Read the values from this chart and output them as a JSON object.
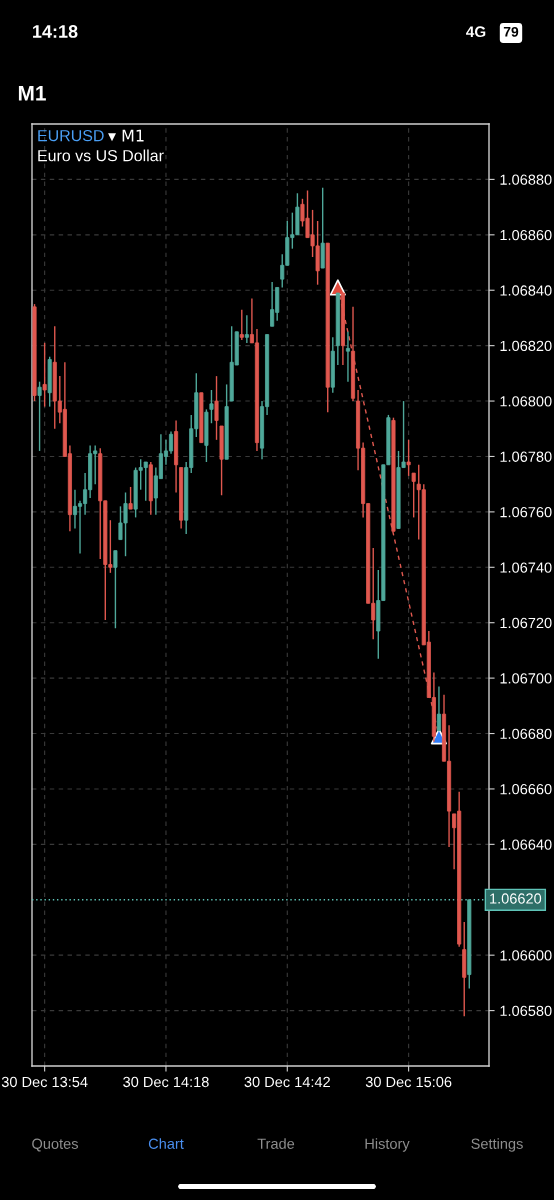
{
  "chart_data": {
    "type": "candlestick",
    "title": "EURUSD",
    "subtitle": "Euro vs US Dollar",
    "annotations": [
      "14:18",
      "4G",
      "79",
      "M1",
      "▾ M1",
      "Quotes",
      "Chart",
      "Trade",
      "History",
      "Settings"
    ],
    "categories": [
      null,
      null,
      "30 Dec 13:54",
      null,
      null,
      null,
      null,
      null,
      null,
      null,
      null,
      null,
      null,
      null,
      null,
      null,
      null,
      null,
      null,
      null,
      null,
      null,
      null,
      null,
      null,
      null,
      "30 Dec 14:18",
      null,
      null,
      null,
      null,
      null,
      null,
      null,
      null,
      null,
      null,
      null,
      null,
      null,
      null,
      null,
      null,
      null,
      null,
      null,
      null,
      null,
      null,
      null,
      "30 Dec 14:42",
      null,
      null,
      null,
      null,
      null,
      null,
      null,
      null,
      null,
      null,
      null,
      null,
      null,
      null,
      null,
      null,
      null,
      null,
      null,
      null,
      null,
      null,
      null,
      "30 Dec 15:06",
      null,
      null,
      null,
      null,
      null,
      null,
      null,
      null,
      null,
      null,
      null,
      null
    ],
    "ohlc": [
      [
        1.06834,
        1.06835,
        1.068,
        1.06802
      ],
      [
        1.06802,
        1.06807,
        1.06782,
        1.06805
      ],
      [
        1.06806,
        1.06821,
        1.06798,
        1.06804
      ],
      [
        1.06803,
        1.06816,
        1.06798,
        1.06815
      ],
      [
        1.06814,
        1.06827,
        1.0679,
        1.068
      ],
      [
        1.068,
        1.06809,
        1.06792,
        1.06796
      ],
      [
        1.06797,
        1.06814,
        1.0678,
        1.0678
      ],
      [
        1.06781,
        1.06784,
        1.06753,
        1.06759
      ],
      [
        1.06759,
        1.06768,
        1.06754,
        1.06762
      ],
      [
        1.06762,
        1.06764,
        1.06745,
        1.06763
      ],
      [
        1.06763,
        1.06774,
        1.06759,
        1.06768
      ],
      [
        1.06768,
        1.06784,
        1.06765,
        1.06781
      ],
      [
        1.06781,
        1.06784,
        1.0677,
        1.06782
      ],
      [
        1.06781,
        1.06783,
        1.06743,
        1.06764
      ],
      [
        1.06764,
        1.06764,
        1.06721,
        1.06741
      ],
      [
        1.06741,
        1.06757,
        1.06738,
        1.0674
      ],
      [
        1.0674,
        1.06746,
        1.06718,
        1.06746
      ],
      [
        1.0675,
        1.06762,
        1.0675,
        1.06756
      ],
      [
        1.06756,
        1.06767,
        1.06744,
        1.06763
      ],
      [
        1.06763,
        1.06769,
        1.06761,
        1.06761
      ],
      [
        1.06761,
        1.06776,
        1.06758,
        1.06775
      ],
      [
        1.06775,
        1.06779,
        1.06768,
        1.06776
      ],
      [
        1.06776,
        1.06778,
        1.06764,
        1.06778
      ],
      [
        1.06777,
        1.06778,
        1.06759,
        1.06764
      ],
      [
        1.06765,
        1.06776,
        1.06759,
        1.06773
      ],
      [
        1.06772,
        1.06788,
        1.06772,
        1.06781
      ],
      [
        1.0678,
        1.06786,
        1.06777,
        1.06782
      ],
      [
        1.06782,
        1.06789,
        1.06781,
        1.06788
      ],
      [
        1.06789,
        1.06793,
        1.06767,
        1.06777
      ],
      [
        1.06776,
        1.06776,
        1.06754,
        1.06757
      ],
      [
        1.06757,
        1.06778,
        1.06752,
        1.06776
      ],
      [
        1.06776,
        1.06795,
        1.06774,
        1.0679
      ],
      [
        1.0679,
        1.0681,
        1.06787,
        1.06803
      ],
      [
        1.06803,
        1.06803,
        1.06785,
        1.06785
      ],
      [
        1.06784,
        1.06797,
        1.06778,
        1.06796
      ],
      [
        1.06797,
        1.06804,
        1.06792,
        1.06799
      ],
      [
        1.068,
        1.06809,
        1.06786,
        1.06793
      ],
      [
        1.06791,
        1.06791,
        1.06766,
        1.06779
      ],
      [
        1.06779,
        1.06806,
        1.06779,
        1.06798
      ],
      [
        1.068,
        1.06827,
        1.068,
        1.06814
      ],
      [
        1.06813,
        1.06825,
        1.06813,
        1.06825
      ],
      [
        1.06824,
        1.06833,
        1.06822,
        1.06823
      ],
      [
        1.06823,
        1.06831,
        1.06821,
        1.06824
      ],
      [
        1.06824,
        1.06837,
        1.06821,
        1.06821
      ],
      [
        1.06821,
        1.06826,
        1.06782,
        1.06785
      ],
      [
        1.06783,
        1.068,
        1.06779,
        1.06798
      ],
      [
        1.06798,
        1.06824,
        1.06795,
        1.06824
      ],
      [
        1.06827,
        1.06843,
        1.06827,
        1.06833
      ],
      [
        1.06832,
        1.06841,
        1.06829,
        1.06841
      ],
      [
        1.06844,
        1.06853,
        1.06841,
        1.06849
      ],
      [
        1.06849,
        1.06865,
        1.06849,
        1.06859
      ],
      [
        1.06859,
        1.06868,
        1.06855,
        1.0686
      ],
      [
        1.0686,
        1.06875,
        1.0686,
        1.0687
      ],
      [
        1.06871,
        1.06873,
        1.06863,
        1.06865
      ],
      [
        1.06866,
        1.06876,
        1.06859,
        1.06859
      ],
      [
        1.0686,
        1.06869,
        1.06852,
        1.06856
      ],
      [
        1.06856,
        1.06865,
        1.06842,
        1.06847
      ],
      [
        1.06848,
        1.06877,
        1.06848,
        1.06857
      ],
      [
        1.06857,
        1.06857,
        1.06796,
        1.06805
      ],
      [
        1.06805,
        1.06823,
        1.06803,
        1.06818
      ],
      [
        1.0682,
        1.06839,
        1.06813,
        1.06839
      ],
      [
        1.06839,
        1.06839,
        1.06813,
        1.0682
      ],
      [
        1.06818,
        1.06825,
        1.06807,
        1.06819
      ],
      [
        1.06818,
        1.06834,
        1.068,
        1.06801
      ],
      [
        1.068,
        1.06804,
        1.06775,
        1.06783
      ],
      [
        1.06783,
        1.06785,
        1.06758,
        1.06763
      ],
      [
        1.06763,
        1.06763,
        1.06727,
        1.06727
      ],
      [
        1.06727,
        1.06747,
        1.06714,
        1.06721
      ],
      [
        1.06717,
        1.06739,
        1.06707,
        1.06728
      ],
      [
        1.06728,
        1.06777,
        1.06728,
        1.06777
      ],
      [
        1.06777,
        1.06795,
        1.06777,
        1.06794
      ],
      [
        1.06793,
        1.06794,
        1.06753,
        1.06753
      ],
      [
        1.06754,
        1.06782,
        1.06754,
        1.06776
      ],
      [
        1.06776,
        1.068,
        1.06776,
        1.06778
      ],
      [
        1.06778,
        1.06786,
        1.06773,
        1.06777
      ],
      [
        1.06774,
        1.06774,
        1.06758,
        1.06771
      ],
      [
        1.0677,
        1.06777,
        1.0675,
        1.06768
      ],
      [
        1.06768,
        1.0677,
        1.06712,
        1.06712
      ],
      [
        1.06713,
        1.06717,
        1.06693,
        1.06693
      ],
      [
        1.06693,
        1.06702,
        1.06677,
        1.06679
      ],
      [
        1.06681,
        1.06697,
        1.06681,
        1.06687
      ],
      [
        1.06687,
        1.06694,
        1.0667,
        1.0667
      ],
      [
        1.0667,
        1.06683,
        1.06639,
        1.06652
      ],
      [
        1.06651,
        1.06651,
        1.06631,
        1.06646
      ],
      [
        1.06652,
        1.06659,
        1.06603,
        1.06604
      ],
      [
        1.06602,
        1.06612,
        1.06578,
        1.06592
      ],
      [
        1.06593,
        1.0662,
        1.06588,
        1.0662
      ]
    ],
    "colors": [
      "#e0584f",
      "#4fa89a",
      "#e0584f",
      "#4fa89a",
      "#e0584f",
      "#e0584f",
      "#e0584f",
      "#e0584f",
      "#4fa89a",
      "#4fa89a",
      "#4fa89a",
      "#4fa89a",
      "#4fa89a",
      "#e0584f",
      "#e0584f",
      "#e0584f",
      "#4fa89a",
      "#4fa89a",
      "#4fa89a",
      "#e0584f",
      "#4fa89a",
      "#4fa89a",
      "#4fa89a",
      "#e0584f",
      "#4fa89a",
      "#4fa89a",
      "#4fa89a",
      "#4fa89a",
      "#e0584f",
      "#e0584f",
      "#4fa89a",
      "#4fa89a",
      "#4fa89a",
      "#e0584f",
      "#4fa89a",
      "#4fa89a",
      "#e0584f",
      "#e0584f",
      "#4fa89a",
      "#4fa89a",
      "#4fa89a",
      "#e0584f",
      "#4fa89a",
      "#e0584f",
      "#e0584f",
      "#4fa89a",
      "#4fa89a",
      "#4fa89a",
      "#4fa89a",
      "#4fa89a",
      "#4fa89a",
      "#4fa89a",
      "#4fa89a",
      "#e0584f",
      "#e0584f",
      "#e0584f",
      "#e0584f",
      "#4fa89a",
      "#e0584f",
      "#4fa89a",
      "#4fa89a",
      "#e0584f",
      "#4fa89a",
      "#e0584f",
      "#e0584f",
      "#e0584f",
      "#e0584f",
      "#e0584f",
      "#4fa89a",
      "#4fa89a",
      "#4fa89a",
      "#e0584f",
      "#4fa89a",
      "#4fa89a",
      "#e0584f",
      "#e0584f",
      "#e0584f",
      "#e0584f",
      "#e0584f",
      "#e0584f",
      "#4fa89a",
      "#e0584f",
      "#e0584f",
      "#e0584f",
      "#e0584f",
      "#e0584f",
      "#4fa89a"
    ],
    "series": [
      {
        "type": "line",
        "values": [
          null,
          null,
          null,
          null,
          null,
          null,
          null,
          null,
          null,
          null,
          null,
          null,
          null,
          null,
          null,
          null,
          null,
          null,
          null,
          null,
          null,
          null,
          null,
          null,
          null,
          null,
          null,
          null,
          null,
          null,
          null,
          null,
          null,
          null,
          null,
          null,
          null,
          null,
          null,
          null,
          null,
          null,
          null,
          null,
          null,
          null,
          null,
          null,
          null,
          null,
          null,
          null,
          null,
          null,
          null,
          null,
          null,
          null,
          null,
          null,
          1.06841,
          null,
          null,
          null,
          null,
          null,
          null,
          null,
          null,
          null,
          null,
          null,
          null,
          null,
          null,
          null,
          null,
          null,
          null,
          null,
          1.06679,
          null,
          null,
          null,
          null,
          null,
          null
        ],
        "color": "#e0584f",
        "line_style": "dashed",
        "marker": "none"
      },
      {
        "type": "scatter",
        "values": [
          null,
          null,
          null,
          null,
          null,
          null,
          null,
          null,
          null,
          null,
          null,
          null,
          null,
          null,
          null,
          null,
          null,
          null,
          null,
          null,
          null,
          null,
          null,
          null,
          null,
          null,
          null,
          null,
          null,
          null,
          null,
          null,
          null,
          null,
          null,
          null,
          null,
          null,
          null,
          null,
          null,
          null,
          null,
          null,
          null,
          null,
          null,
          null,
          null,
          null,
          null,
          null,
          null,
          null,
          null,
          null,
          null,
          null,
          null,
          null,
          1.06841,
          null,
          null,
          null,
          null,
          null,
          null,
          null,
          null,
          null,
          null,
          null,
          null,
          null,
          null,
          null,
          null,
          null,
          null,
          null,
          null,
          null,
          null,
          null,
          null,
          null,
          null
        ],
        "color": "#e04a3c",
        "marker": "triangle"
      },
      {
        "type": "scatter",
        "values": [
          null,
          null,
          null,
          null,
          null,
          null,
          null,
          null,
          null,
          null,
          null,
          null,
          null,
          null,
          null,
          null,
          null,
          null,
          null,
          null,
          null,
          null,
          null,
          null,
          null,
          null,
          null,
          null,
          null,
          null,
          null,
          null,
          null,
          null,
          null,
          null,
          null,
          null,
          null,
          null,
          null,
          null,
          null,
          null,
          null,
          null,
          null,
          null,
          null,
          null,
          null,
          null,
          null,
          null,
          null,
          null,
          null,
          null,
          null,
          null,
          null,
          null,
          null,
          null,
          null,
          null,
          null,
          null,
          null,
          null,
          null,
          null,
          null,
          null,
          null,
          null,
          null,
          null,
          null,
          null,
          1.06679,
          null,
          null,
          null,
          null,
          null,
          null
        ],
        "color": "#2f7cf6",
        "marker": "triangle"
      }
    ],
    "ylim": [
      1.0656,
      1.069
    ],
    "yticks": [
      {
        "value": 1.0658,
        "label": "1.06580"
      },
      {
        "value": 1.066,
        "label": "1.06600"
      },
      {
        "value": 1.0664,
        "label": "1.06640"
      },
      {
        "value": 1.0666,
        "label": "1.06660"
      },
      {
        "value": 1.0668,
        "label": "1.06680"
      },
      {
        "value": 1.067,
        "label": "1.06700"
      },
      {
        "value": 1.0672,
        "label": "1.06720"
      },
      {
        "value": 1.0674,
        "label": "1.06740"
      },
      {
        "value": 1.0676,
        "label": "1.06760"
      },
      {
        "value": 1.0678,
        "label": "1.06780"
      },
      {
        "value": 1.068,
        "label": "1.06800"
      },
      {
        "value": 1.0682,
        "label": "1.06820"
      },
      {
        "value": 1.0684,
        "label": "1.06840"
      },
      {
        "value": 1.0686,
        "label": "1.06860"
      },
      {
        "value": 1.0688,
        "label": "1.06880"
      }
    ],
    "ref_lines": [
      {
        "axis": "y",
        "value": 1.0662,
        "label": "1.06620",
        "color": "#5fc4b8",
        "line_style": "dotted"
      }
    ],
    "grid": true
  }
}
